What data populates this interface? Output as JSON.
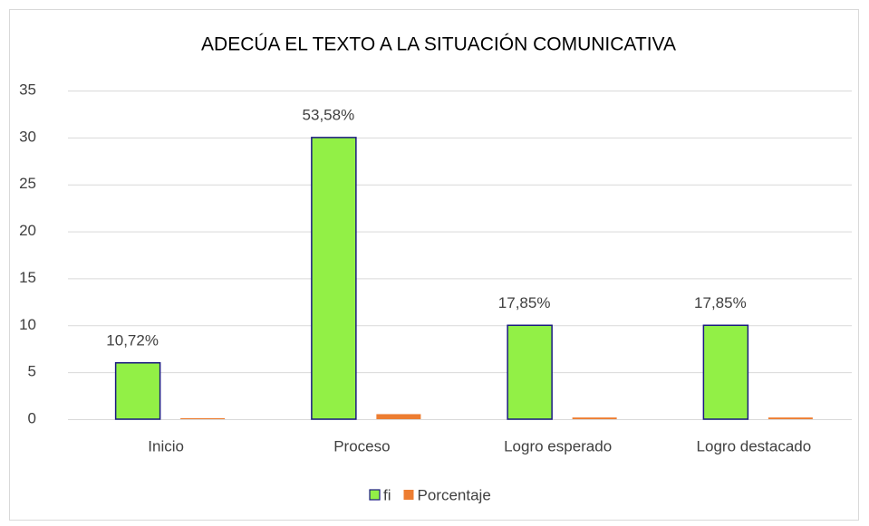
{
  "chart_data": {
    "type": "bar",
    "title": "ADECÚA EL TEXTO A LA SITUACIÓN COMUNICATIVA",
    "categories": [
      "Inicio",
      "Proceso",
      "Logro esperado",
      "Logro destacado"
    ],
    "series": [
      {
        "name": "fi",
        "color": "#92f046",
        "values": [
          6,
          30,
          10,
          10
        ]
      },
      {
        "name": "Porcentaje",
        "color": "#ed7d31",
        "values": [
          0.1072,
          0.5358,
          0.1785,
          0.1785
        ],
        "value_labels": [
          "10,72%",
          "53,58%",
          "17,85%",
          "17,85%"
        ]
      }
    ],
    "ylim": [
      0,
      35
    ],
    "yticks": [
      0,
      5,
      10,
      15,
      20,
      25,
      30,
      35
    ],
    "grid": true,
    "legend": "bottom"
  }
}
